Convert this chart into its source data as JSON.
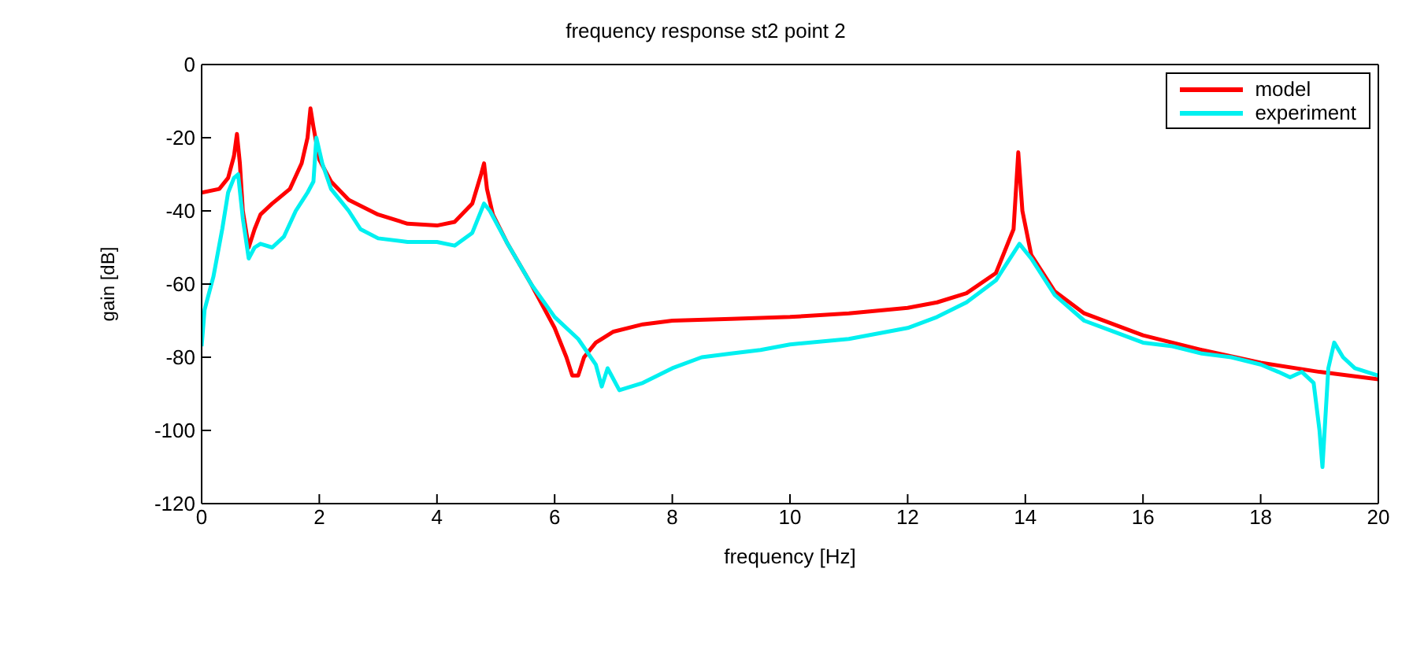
{
  "chart_data": {
    "type": "line",
    "title": "frequency response st2 point 2",
    "xlabel": "frequency [Hz]",
    "ylabel": "gain [dB]",
    "xlim": [
      0,
      20
    ],
    "xticks": [
      0,
      2,
      4,
      6,
      8,
      10,
      12,
      14,
      16,
      18,
      20
    ],
    "ylim": [
      -120,
      0
    ],
    "yticks": [
      -120,
      -100,
      -80,
      -60,
      -40,
      -20,
      0
    ],
    "legend": "top right",
    "marker": "none",
    "line_style": "solid",
    "series": [
      {
        "name": "model",
        "color": "#ff0000",
        "x": [
          0,
          0.3,
          0.45,
          0.55,
          0.6,
          0.65,
          0.7,
          0.8,
          0.9,
          1.0,
          1.2,
          1.5,
          1.7,
          1.8,
          1.85,
          1.9,
          2.0,
          2.2,
          2.5,
          3,
          3.5,
          4,
          4.3,
          4.6,
          4.75,
          4.8,
          4.85,
          4.95,
          5.2,
          5.6,
          6.0,
          6.2,
          6.3,
          6.4,
          6.5,
          6.7,
          7,
          7.5,
          8,
          9,
          10,
          11,
          12,
          12.5,
          13,
          13.5,
          13.8,
          13.88,
          13.95,
          14.1,
          14.5,
          15,
          16,
          17,
          18,
          19,
          20
        ],
        "values": [
          -35,
          -34,
          -31,
          -25,
          -19,
          -27,
          -40,
          -50,
          -45,
          -41,
          -38,
          -34,
          -27,
          -20,
          -12,
          -17,
          -26,
          -32,
          -37,
          -41,
          -43.5,
          -44,
          -43,
          -38,
          -30,
          -27,
          -34,
          -41,
          -49,
          -60,
          -72,
          -80,
          -85,
          -85,
          -80,
          -76,
          -73,
          -71,
          -70,
          -69.5,
          -69,
          -68,
          -66.5,
          -65,
          -62.5,
          -57,
          -45,
          -24,
          -40,
          -52,
          -62,
          -68,
          -74,
          -78,
          -81.5,
          -84,
          -86
        ]
      },
      {
        "name": "experiment",
        "color": "#00f0f0",
        "x": [
          0,
          0.05,
          0.2,
          0.35,
          0.45,
          0.55,
          0.62,
          0.7,
          0.8,
          0.9,
          1.0,
          1.2,
          1.4,
          1.6,
          1.8,
          1.9,
          1.95,
          2.05,
          2.2,
          2.5,
          2.7,
          3,
          3.5,
          4,
          4.3,
          4.6,
          4.8,
          4.9,
          5.2,
          5.6,
          6,
          6.4,
          6.7,
          6.8,
          6.9,
          7.1,
          7.5,
          8,
          8.5,
          9,
          9.5,
          10,
          11,
          12,
          12.5,
          13,
          13.5,
          13.9,
          14.1,
          14.5,
          15,
          15.5,
          16,
          16.5,
          17,
          17.5,
          18,
          18.3,
          18.5,
          18.7,
          18.9,
          19.0,
          19.05,
          19.15,
          19.25,
          19.4,
          19.6,
          19.8,
          20
        ],
        "values": [
          -77,
          -67,
          -58,
          -45,
          -35,
          -31,
          -30,
          -42,
          -53,
          -50,
          -49,
          -50,
          -47,
          -40,
          -35,
          -32,
          -20,
          -27,
          -34,
          -40,
          -45,
          -47.5,
          -48.5,
          -48.5,
          -49.5,
          -46,
          -38,
          -40,
          -49,
          -60,
          -69,
          -75,
          -82,
          -88,
          -83,
          -89,
          -87,
          -83,
          -80,
          -79,
          -78,
          -76.5,
          -75,
          -72,
          -69,
          -65,
          -59,
          -49,
          -53,
          -63,
          -70,
          -73,
          -76,
          -77,
          -79,
          -80,
          -82,
          -84,
          -85.5,
          -84,
          -87,
          -100,
          -110,
          -83,
          -76,
          -80,
          -83,
          -84,
          -85
        ]
      }
    ]
  }
}
